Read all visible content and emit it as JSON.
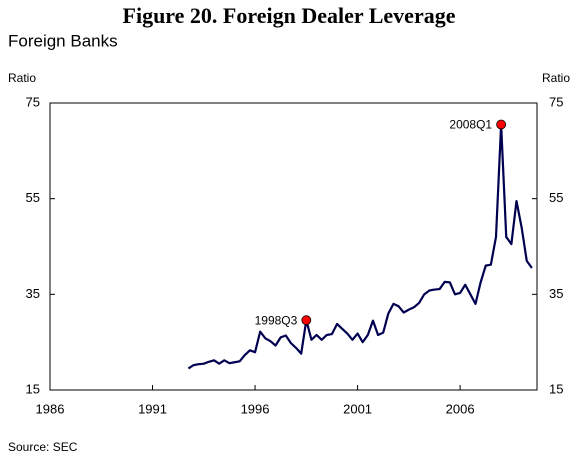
{
  "chart_data": {
    "type": "line",
    "title": "Figure 20. Foreign Dealer Leverage",
    "subtitle": "Foreign Banks",
    "ylabel": "Ratio",
    "y2label": "Ratio",
    "source": "Source: SEC",
    "xlim": [
      1986,
      2009.75
    ],
    "xticks": [
      1986,
      1991,
      1996,
      2001,
      2006
    ],
    "ylim": [
      15,
      75
    ],
    "yticks": [
      15,
      35,
      55,
      75
    ],
    "y2lim": [
      15,
      75
    ],
    "y2ticks": [
      15,
      35,
      55,
      75
    ],
    "grid": false,
    "x": [
      1992.75,
      1993,
      1993.25,
      1993.5,
      1993.75,
      1994,
      1994.25,
      1994.5,
      1994.75,
      1995,
      1995.25,
      1995.5,
      1995.75,
      1996,
      1996.25,
      1996.5,
      1996.75,
      1997,
      1997.25,
      1997.5,
      1997.75,
      1998,
      1998.25,
      1998.5,
      1998.75,
      1999,
      1999.25,
      1999.5,
      1999.75,
      2000,
      2000.25,
      2000.5,
      2000.75,
      2001,
      2001.25,
      2001.5,
      2001.75,
      2002,
      2002.25,
      2002.5,
      2002.75,
      2003,
      2003.25,
      2003.5,
      2003.75,
      2004,
      2004.25,
      2004.5,
      2004.75,
      2005,
      2005.25,
      2005.5,
      2005.75,
      2006,
      2006.25,
      2006.5,
      2006.75,
      2007,
      2007.25,
      2007.5,
      2007.75,
      2008,
      2008.25,
      2008.5,
      2008.75,
      2009,
      2009.25,
      2009.5
    ],
    "series": [
      {
        "color": "#000050",
        "values": [
          19.5,
          20.2,
          20.4,
          20.5,
          20.9,
          21.2,
          20.5,
          21.2,
          20.6,
          20.8,
          21.0,
          22.3,
          23.3,
          22.9,
          27.2,
          25.8,
          25.2,
          24.3,
          26.0,
          26.4,
          24.8,
          23.8,
          22.6,
          29.6,
          25.5,
          26.5,
          25.5,
          26.5,
          26.7,
          28.8,
          27.8,
          26.8,
          25.5,
          26.8,
          25,
          26.5,
          29.5,
          26.5,
          27,
          31,
          33,
          32.5,
          31.2,
          31.8,
          32.3,
          33.2,
          35,
          35.8,
          36,
          36.1,
          37.6,
          37.5,
          35,
          35.3,
          37,
          35,
          33,
          37.5,
          41,
          41.2,
          47,
          70.5,
          47,
          45.5,
          54.5,
          49,
          42,
          40.5
        ]
      }
    ],
    "annotations": [
      {
        "text": "1998Q3",
        "x": 1998.5,
        "y": 29.6,
        "color": "#ff0000"
      },
      {
        "text": "2008Q1",
        "x": 2008,
        "y": 70.5,
        "color": "#ff0000"
      }
    ]
  }
}
